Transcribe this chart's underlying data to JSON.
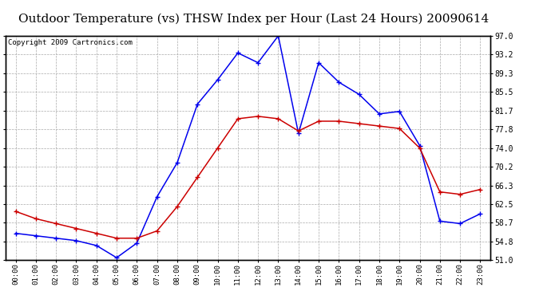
{
  "title": "Outdoor Temperature (vs) THSW Index per Hour (Last 24 Hours) 20090614",
  "copyright": "Copyright 2009 Cartronics.com",
  "hours": [
    0,
    1,
    2,
    3,
    4,
    5,
    6,
    7,
    8,
    9,
    10,
    11,
    12,
    13,
    14,
    15,
    16,
    17,
    18,
    19,
    20,
    21,
    22,
    23
  ],
  "temp_red": [
    61.0,
    59.5,
    58.5,
    57.5,
    56.5,
    55.5,
    55.5,
    57.0,
    62.0,
    68.0,
    74.0,
    80.0,
    80.5,
    80.0,
    77.5,
    79.5,
    79.5,
    79.0,
    78.5,
    78.0,
    74.0,
    65.0,
    64.5,
    65.5
  ],
  "thsw_blue": [
    56.5,
    56.0,
    55.5,
    55.0,
    54.0,
    51.5,
    54.5,
    64.0,
    71.0,
    83.0,
    88.0,
    93.5,
    91.5,
    97.0,
    77.0,
    91.5,
    87.5,
    85.0,
    81.0,
    81.5,
    74.5,
    59.0,
    58.5,
    60.5
  ],
  "ylim": [
    51.0,
    97.0
  ],
  "yticks": [
    51.0,
    54.8,
    58.7,
    62.5,
    66.3,
    70.2,
    74.0,
    77.8,
    81.7,
    85.5,
    89.3,
    93.2,
    97.0
  ],
  "bg_color": "#ffffff",
  "plot_bg": "#ffffff",
  "grid_color": "#aaaaaa",
  "red_color": "#cc0000",
  "blue_color": "#0000ee",
  "title_fontsize": 11,
  "copyright_fontsize": 6.5,
  "tick_fontsize": 7,
  "xtick_fontsize": 6.5
}
